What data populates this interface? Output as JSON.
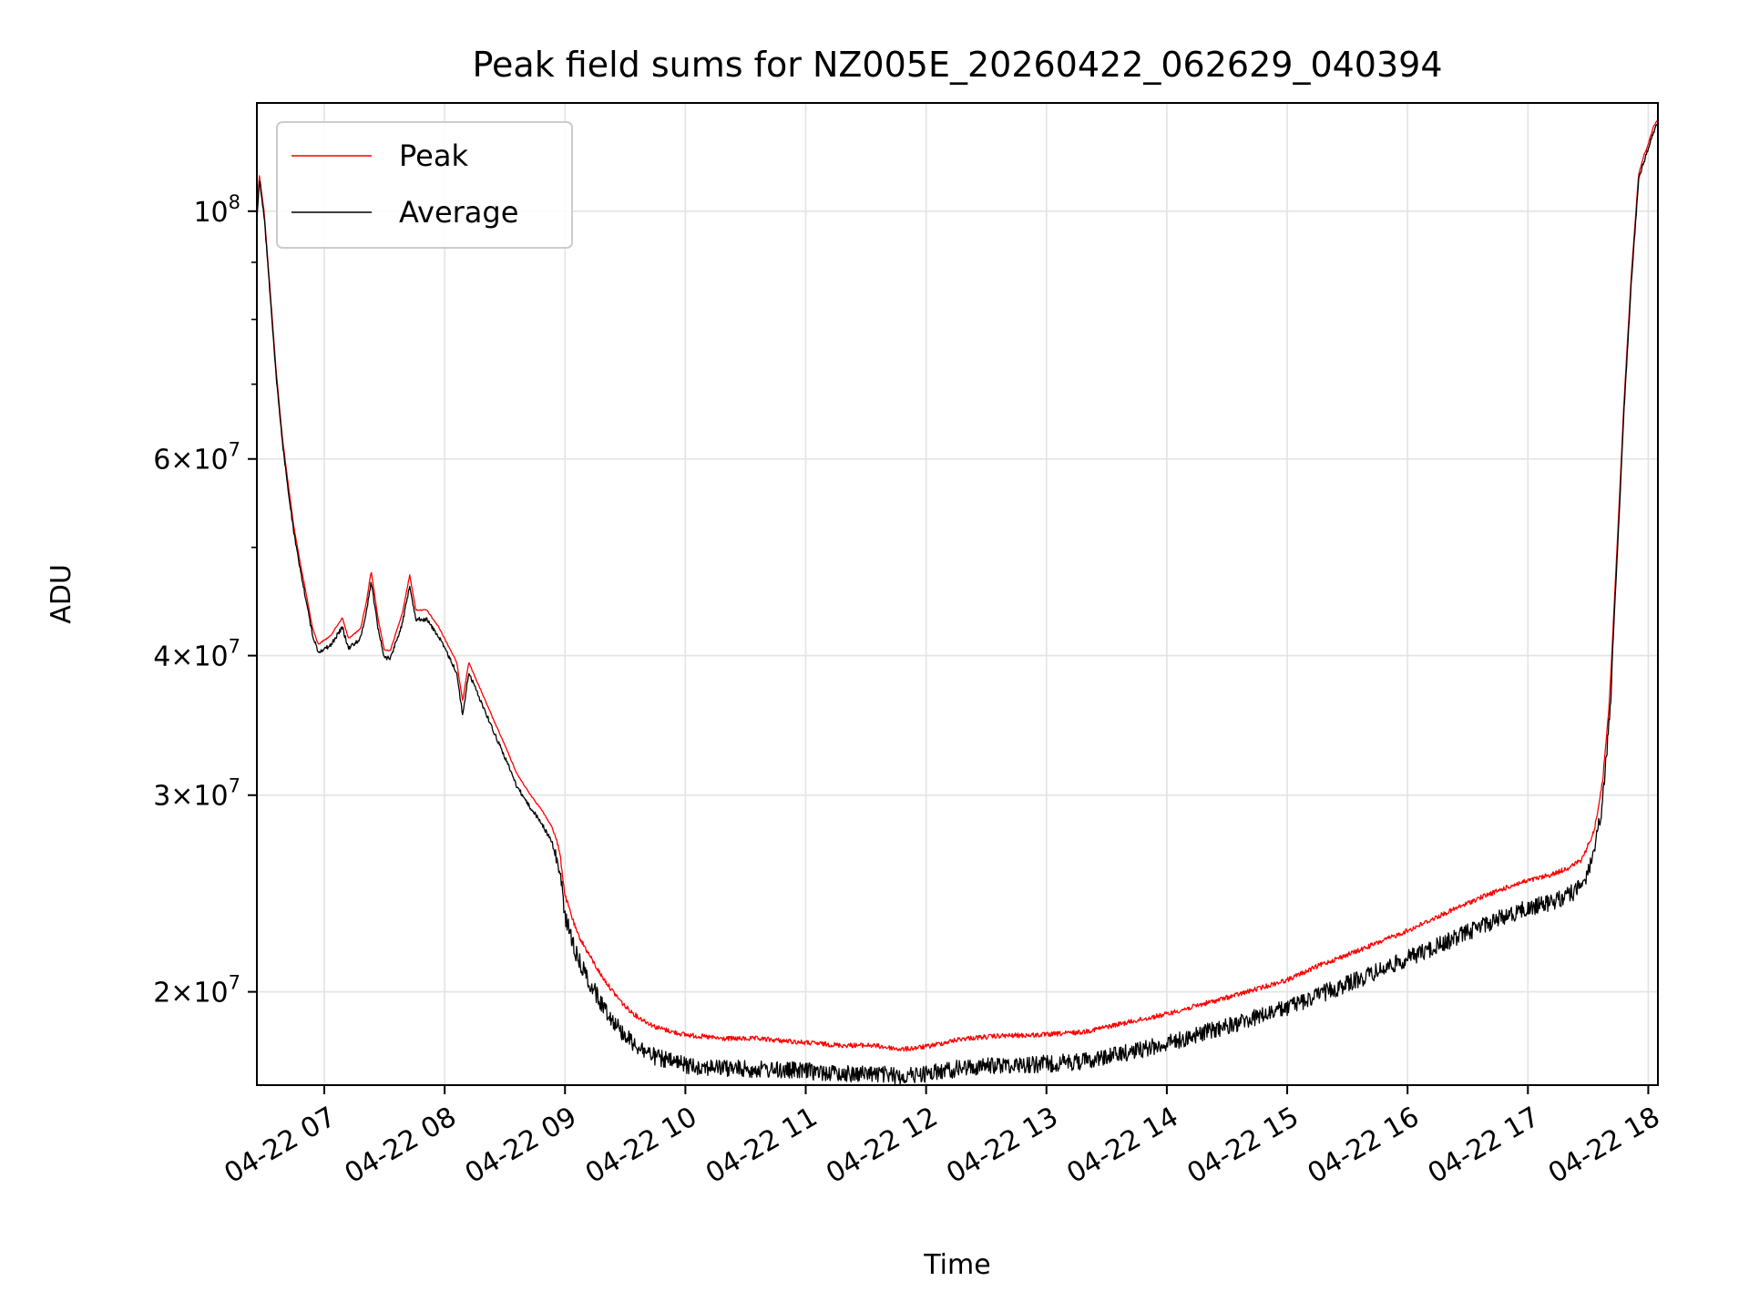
{
  "chart_data": {
    "type": "line",
    "title": "Peak field sums for NZ005E_20260422_062629_040394",
    "xlabel": "Time",
    "ylabel": "ADU",
    "y_scale": "log",
    "xlim_hours": [
      6.44,
      18.08
    ],
    "ylim": [
      16500000,
      125000000
    ],
    "grid": true,
    "legend_position": "upper-left",
    "x_ticks": [
      {
        "hour": 7,
        "label": "04-22 07"
      },
      {
        "hour": 8,
        "label": "04-22 08"
      },
      {
        "hour": 9,
        "label": "04-22 09"
      },
      {
        "hour": 10,
        "label": "04-22 10"
      },
      {
        "hour": 11,
        "label": "04-22 11"
      },
      {
        "hour": 12,
        "label": "04-22 12"
      },
      {
        "hour": 13,
        "label": "04-22 13"
      },
      {
        "hour": 14,
        "label": "04-22 14"
      },
      {
        "hour": 15,
        "label": "04-22 15"
      },
      {
        "hour": 16,
        "label": "04-22 16"
      },
      {
        "hour": 17,
        "label": "04-22 17"
      },
      {
        "hour": 18,
        "label": "04-22 18"
      }
    ],
    "y_ticks": [
      {
        "value": 20000000,
        "base": "2×10",
        "exp": "7"
      },
      {
        "value": 30000000,
        "base": "3×10",
        "exp": "7"
      },
      {
        "value": 40000000,
        "base": "4×10",
        "exp": "7"
      },
      {
        "value": 60000000,
        "base": "6×10",
        "exp": "7"
      },
      {
        "value": 100000000,
        "base": "10",
        "exp": "8"
      }
    ],
    "y_minor_ticks": [
      50000000,
      70000000,
      80000000,
      90000000
    ],
    "series": [
      {
        "name": "Peak",
        "color": "#ff0000",
        "noise": 0.01,
        "points": [
          [
            6.44,
            99000000
          ],
          [
            6.46,
            108000000
          ],
          [
            6.5,
            100000000
          ],
          [
            6.55,
            85000000
          ],
          [
            6.6,
            72000000
          ],
          [
            6.65,
            63000000
          ],
          [
            6.7,
            57000000
          ],
          [
            6.75,
            52000000
          ],
          [
            6.8,
            48500000
          ],
          [
            6.85,
            45500000
          ],
          [
            6.9,
            42500000
          ],
          [
            6.95,
            41000000
          ],
          [
            7.05,
            41700000
          ],
          [
            7.15,
            43300000
          ],
          [
            7.2,
            41500000
          ],
          [
            7.3,
            42300000
          ],
          [
            7.35,
            44700000
          ],
          [
            7.39,
            47700000
          ],
          [
            7.45,
            43000000
          ],
          [
            7.5,
            40500000
          ],
          [
            7.55,
            40500000
          ],
          [
            7.65,
            43800000
          ],
          [
            7.71,
            47300000
          ],
          [
            7.76,
            44000000
          ],
          [
            7.85,
            44000000
          ],
          [
            7.95,
            42500000
          ],
          [
            8.05,
            40500000
          ],
          [
            8.1,
            39500000
          ],
          [
            8.15,
            36500000
          ],
          [
            8.2,
            39500000
          ],
          [
            8.3,
            37300000
          ],
          [
            8.4,
            35200000
          ],
          [
            8.5,
            33300000
          ],
          [
            8.6,
            31400000
          ],
          [
            8.7,
            30200000
          ],
          [
            8.8,
            29200000
          ],
          [
            8.92,
            27800000
          ],
          [
            8.96,
            26600000
          ],
          [
            9.0,
            24500000
          ],
          [
            9.1,
            22700000
          ],
          [
            9.2,
            21700000
          ],
          [
            9.3,
            20800000
          ],
          [
            9.4,
            20100000
          ],
          [
            9.5,
            19500000
          ],
          [
            9.6,
            19100000
          ],
          [
            9.75,
            18700000
          ],
          [
            9.9,
            18500000
          ],
          [
            10.0,
            18400000
          ],
          [
            10.3,
            18250000
          ],
          [
            10.6,
            18250000
          ],
          [
            11.0,
            18100000
          ],
          [
            11.3,
            18000000
          ],
          [
            11.55,
            18000000
          ],
          [
            11.8,
            17850000
          ],
          [
            12.0,
            17950000
          ],
          [
            12.3,
            18250000
          ],
          [
            12.6,
            18350000
          ],
          [
            13.0,
            18400000
          ],
          [
            13.3,
            18500000
          ],
          [
            13.6,
            18800000
          ],
          [
            14.0,
            19200000
          ],
          [
            14.3,
            19600000
          ],
          [
            14.6,
            20000000
          ],
          [
            15.0,
            20600000
          ],
          [
            15.3,
            21300000
          ],
          [
            15.6,
            21900000
          ],
          [
            16.0,
            22800000
          ],
          [
            16.3,
            23600000
          ],
          [
            16.6,
            24400000
          ],
          [
            16.9,
            25100000
          ],
          [
            17.2,
            25600000
          ],
          [
            17.35,
            26000000
          ],
          [
            17.45,
            26400000
          ],
          [
            17.55,
            28000000
          ],
          [
            17.62,
            31000000
          ],
          [
            17.68,
            37000000
          ],
          [
            17.74,
            50000000
          ],
          [
            17.8,
            68000000
          ],
          [
            17.86,
            88000000
          ],
          [
            17.92,
            108000000
          ],
          [
            17.96,
            112000000
          ],
          [
            18.0,
            115000000
          ],
          [
            18.04,
            119000000
          ],
          [
            18.08,
            121000000
          ]
        ]
      },
      {
        "name": "Average",
        "color": "#000000",
        "noise": 0.035,
        "points": [
          [
            6.44,
            98000000
          ],
          [
            6.46,
            107500000
          ],
          [
            6.5,
            99500000
          ],
          [
            6.55,
            84500000
          ],
          [
            6.6,
            71500000
          ],
          [
            6.65,
            62500000
          ],
          [
            6.7,
            56500000
          ],
          [
            6.75,
            51500000
          ],
          [
            6.8,
            48000000
          ],
          [
            6.85,
            45000000
          ],
          [
            6.9,
            42000000
          ],
          [
            6.95,
            40500000
          ],
          [
            7.05,
            41000000
          ],
          [
            7.15,
            42600000
          ],
          [
            7.2,
            40800000
          ],
          [
            7.3,
            41600000
          ],
          [
            7.35,
            44000000
          ],
          [
            7.39,
            46800000
          ],
          [
            7.45,
            42300000
          ],
          [
            7.5,
            40000000
          ],
          [
            7.55,
            40000000
          ],
          [
            7.65,
            43000000
          ],
          [
            7.71,
            46500000
          ],
          [
            7.76,
            43300000
          ],
          [
            7.85,
            43300000
          ],
          [
            7.95,
            41800000
          ],
          [
            8.05,
            39800000
          ],
          [
            8.1,
            38800000
          ],
          [
            8.15,
            35500000
          ],
          [
            8.2,
            38800000
          ],
          [
            8.3,
            36600000
          ],
          [
            8.4,
            34500000
          ],
          [
            8.5,
            32600000
          ],
          [
            8.6,
            30700000
          ],
          [
            8.7,
            29500000
          ],
          [
            8.8,
            28500000
          ],
          [
            8.92,
            27000000
          ],
          [
            8.96,
            25900000
          ],
          [
            9.0,
            23800000
          ],
          [
            9.1,
            21900000
          ],
          [
            9.2,
            20800000
          ],
          [
            9.3,
            19900000
          ],
          [
            9.4,
            19200000
          ],
          [
            9.5,
            18600000
          ],
          [
            9.6,
            18200000
          ],
          [
            9.75,
            17800000
          ],
          [
            9.9,
            17600000
          ],
          [
            10.0,
            17500000
          ],
          [
            10.3,
            17400000
          ],
          [
            10.6,
            17350000
          ],
          [
            11.0,
            17300000
          ],
          [
            11.3,
            17200000
          ],
          [
            11.55,
            17200000
          ],
          [
            11.8,
            17100000
          ],
          [
            12.0,
            17200000
          ],
          [
            12.3,
            17400000
          ],
          [
            12.6,
            17500000
          ],
          [
            13.0,
            17550000
          ],
          [
            13.3,
            17650000
          ],
          [
            13.6,
            17900000
          ],
          [
            14.0,
            18300000
          ],
          [
            14.3,
            18700000
          ],
          [
            14.6,
            19100000
          ],
          [
            15.0,
            19700000
          ],
          [
            15.3,
            20300000
          ],
          [
            15.6,
            20900000
          ],
          [
            16.0,
            21800000
          ],
          [
            16.3,
            22500000
          ],
          [
            16.6,
            23300000
          ],
          [
            16.9,
            24000000
          ],
          [
            17.2,
            24500000
          ],
          [
            17.35,
            24900000
          ],
          [
            17.45,
            25300000
          ],
          [
            17.55,
            27000000
          ],
          [
            17.62,
            30000000
          ],
          [
            17.68,
            36000000
          ],
          [
            17.74,
            49000000
          ],
          [
            17.8,
            67000000
          ],
          [
            17.86,
            87000000
          ],
          [
            17.92,
            107000000
          ],
          [
            17.96,
            111000000
          ],
          [
            18.0,
            114000000
          ],
          [
            18.04,
            118000000
          ],
          [
            18.08,
            120500000
          ]
        ]
      }
    ]
  }
}
